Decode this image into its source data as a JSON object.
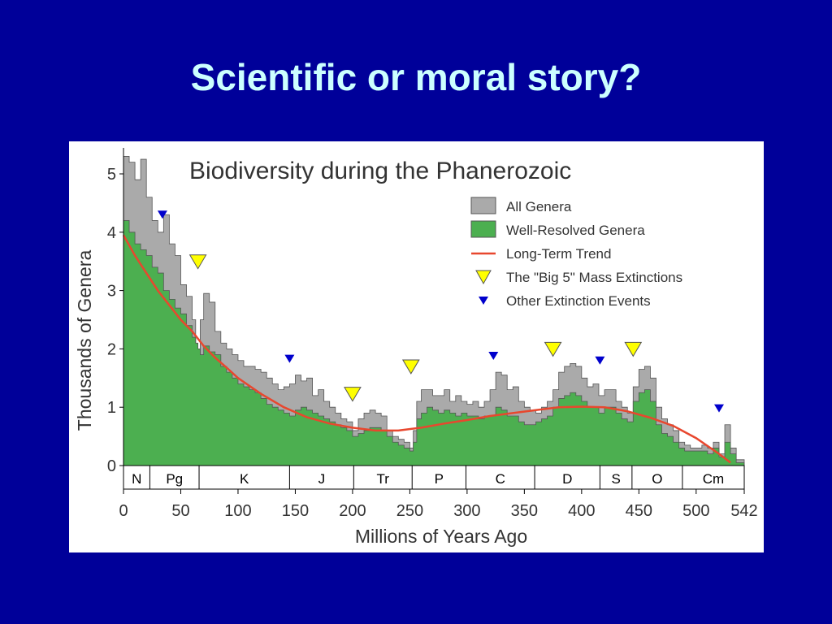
{
  "slide": {
    "title": "Scientific or moral story?"
  },
  "chart_data": {
    "type": "area",
    "title": "Biodiversity during the Phanerozoic",
    "xlabel": "Millions of Years Ago",
    "ylabel": "Thousands of Genera",
    "xlim": [
      0,
      542
    ],
    "ylim": [
      0,
      5.3
    ],
    "x_ticks": [
      0,
      50,
      100,
      150,
      200,
      250,
      300,
      350,
      400,
      450,
      500,
      542
    ],
    "y_ticks": [
      0,
      1,
      2,
      3,
      4,
      5
    ],
    "legend": {
      "position": "top-right",
      "entries": [
        {
          "label": "All Genera",
          "kind": "box",
          "color": "#aaaaaa"
        },
        {
          "label": "Well-Resolved Genera",
          "kind": "box",
          "color": "#4caf50"
        },
        {
          "label": "Long-Term Trend",
          "kind": "line",
          "color": "#e8472e"
        },
        {
          "label": "The \"Big 5\" Mass Extinctions",
          "kind": "big-triangle",
          "color": "#ffff00"
        },
        {
          "label": "Other Extinction Events",
          "kind": "small-triangle",
          "color": "#0000cc"
        }
      ]
    },
    "series": [
      {
        "name": "All Genera",
        "color": "#aaaaaa",
        "x": [
          0,
          5,
          10,
          15,
          20,
          25,
          30,
          35,
          40,
          45,
          50,
          55,
          60,
          63,
          65,
          67,
          70,
          75,
          80,
          85,
          90,
          95,
          100,
          105,
          110,
          115,
          120,
          125,
          130,
          135,
          140,
          145,
          150,
          155,
          160,
          165,
          170,
          175,
          180,
          185,
          190,
          195,
          200,
          205,
          210,
          215,
          220,
          225,
          230,
          235,
          240,
          245,
          250,
          253,
          256,
          260,
          265,
          270,
          275,
          280,
          285,
          290,
          295,
          300,
          305,
          310,
          315,
          320,
          325,
          330,
          335,
          340,
          345,
          350,
          355,
          360,
          365,
          370,
          375,
          380,
          385,
          390,
          395,
          400,
          405,
          410,
          415,
          420,
          425,
          430,
          435,
          440,
          445,
          450,
          455,
          460,
          465,
          470,
          475,
          480,
          485,
          490,
          495,
          500,
          505,
          510,
          515,
          520,
          525,
          530,
          535,
          542
        ],
        "values": [
          5.3,
          5.2,
          4.9,
          5.25,
          4.6,
          4.2,
          4.0,
          4.3,
          3.8,
          3.6,
          3.1,
          2.9,
          2.5,
          1.7,
          1.5,
          2.5,
          2.95,
          2.8,
          2.3,
          2.1,
          2.0,
          1.9,
          1.8,
          1.7,
          1.7,
          1.65,
          1.6,
          1.5,
          1.4,
          1.3,
          1.35,
          1.4,
          1.55,
          1.45,
          1.5,
          1.2,
          1.3,
          1.1,
          1.0,
          0.9,
          0.8,
          0.75,
          0.6,
          0.8,
          0.9,
          0.95,
          0.9,
          0.85,
          0.6,
          0.5,
          0.45,
          0.4,
          0.3,
          0.6,
          1.1,
          1.3,
          1.3,
          1.2,
          1.2,
          1.3,
          1.1,
          1.2,
          1.1,
          1.05,
          1.1,
          1.0,
          1.1,
          1.3,
          1.6,
          1.55,
          1.3,
          1.35,
          1.1,
          1.0,
          0.95,
          0.9,
          1.0,
          1.1,
          1.3,
          1.6,
          1.7,
          1.75,
          1.7,
          1.5,
          1.35,
          1.4,
          1.2,
          1.3,
          1.3,
          1.1,
          1.0,
          0.9,
          1.35,
          1.65,
          1.7,
          1.5,
          1.0,
          0.8,
          0.7,
          0.6,
          0.4,
          0.35,
          0.3,
          0.3,
          0.35,
          0.3,
          0.4,
          0.2,
          0.7,
          0.3,
          0.1,
          0.03
        ]
      },
      {
        "name": "Well-Resolved Genera",
        "color": "#4caf50",
        "x": [
          0,
          5,
          10,
          15,
          20,
          25,
          30,
          35,
          40,
          45,
          50,
          55,
          60,
          63,
          65,
          67,
          70,
          75,
          80,
          85,
          90,
          95,
          100,
          105,
          110,
          115,
          120,
          125,
          130,
          135,
          140,
          145,
          150,
          155,
          160,
          165,
          170,
          175,
          180,
          185,
          190,
          195,
          200,
          205,
          210,
          215,
          220,
          225,
          230,
          235,
          240,
          245,
          250,
          253,
          256,
          260,
          265,
          270,
          275,
          280,
          285,
          290,
          295,
          300,
          305,
          310,
          315,
          320,
          325,
          330,
          335,
          340,
          345,
          350,
          355,
          360,
          365,
          370,
          375,
          380,
          385,
          390,
          395,
          400,
          405,
          410,
          415,
          420,
          425,
          430,
          435,
          440,
          445,
          450,
          455,
          460,
          465,
          470,
          475,
          480,
          485,
          490,
          495,
          500,
          505,
          510,
          515,
          520,
          525,
          530,
          535,
          542
        ],
        "values": [
          4.2,
          4.0,
          3.8,
          3.7,
          3.6,
          3.4,
          3.3,
          3.0,
          2.85,
          2.7,
          2.6,
          2.4,
          2.2,
          2.1,
          2.0,
          1.9,
          2.05,
          1.95,
          1.9,
          1.7,
          1.6,
          1.5,
          1.4,
          1.35,
          1.3,
          1.25,
          1.15,
          1.05,
          1.0,
          0.95,
          0.9,
          0.85,
          0.95,
          1.0,
          0.95,
          0.9,
          0.85,
          0.8,
          0.75,
          0.7,
          0.65,
          0.6,
          0.5,
          0.55,
          0.6,
          0.65,
          0.65,
          0.6,
          0.5,
          0.4,
          0.35,
          0.3,
          0.25,
          0.4,
          0.8,
          0.9,
          1.0,
          0.95,
          0.9,
          0.95,
          0.9,
          0.85,
          0.9,
          0.85,
          0.85,
          0.8,
          0.85,
          0.85,
          1.0,
          0.95,
          0.85,
          0.85,
          0.75,
          0.7,
          0.7,
          0.75,
          0.8,
          0.85,
          1.0,
          1.15,
          1.2,
          1.25,
          1.2,
          1.1,
          1.0,
          1.0,
          0.9,
          1.0,
          1.0,
          0.9,
          0.8,
          0.75,
          1.1,
          1.25,
          1.3,
          1.1,
          0.7,
          0.55,
          0.5,
          0.4,
          0.3,
          0.25,
          0.25,
          0.25,
          0.25,
          0.2,
          0.3,
          0.15,
          0.4,
          0.2,
          0.05,
          0.02
        ]
      },
      {
        "name": "Long-Term Trend",
        "color": "#e8472e",
        "x": [
          0,
          10,
          20,
          30,
          40,
          50,
          60,
          70,
          80,
          90,
          100,
          120,
          140,
          160,
          180,
          200,
          220,
          240,
          260,
          280,
          300,
          320,
          340,
          360,
          380,
          400,
          420,
          440,
          460,
          480,
          500,
          520,
          530
        ],
        "values": [
          3.95,
          3.6,
          3.3,
          3.0,
          2.75,
          2.5,
          2.3,
          2.05,
          1.85,
          1.68,
          1.5,
          1.23,
          1.0,
          0.83,
          0.72,
          0.65,
          0.6,
          0.6,
          0.65,
          0.72,
          0.78,
          0.85,
          0.9,
          0.95,
          1.0,
          1.01,
          1.0,
          0.93,
          0.82,
          0.68,
          0.47,
          0.2,
          0.05
        ]
      }
    ],
    "big5_extinctions": [
      {
        "x": 65,
        "y": 3.5
      },
      {
        "x": 200,
        "y": 1.23
      },
      {
        "x": 251,
        "y": 1.7
      },
      {
        "x": 375,
        "y": 2.0
      },
      {
        "x": 445,
        "y": 2.0
      }
    ],
    "other_extinctions": [
      {
        "x": 34,
        "y": 4.3
      },
      {
        "x": 145,
        "y": 1.83
      },
      {
        "x": 323,
        "y": 1.88
      },
      {
        "x": 416,
        "y": 1.8
      },
      {
        "x": 520,
        "y": 0.98
      }
    ],
    "periods": [
      {
        "label": "N",
        "start": 0,
        "end": 23
      },
      {
        "label": "Pg",
        "start": 23,
        "end": 66
      },
      {
        "label": "K",
        "start": 66,
        "end": 145
      },
      {
        "label": "J",
        "start": 145,
        "end": 201
      },
      {
        "label": "Tr",
        "start": 201,
        "end": 252
      },
      {
        "label": "P",
        "start": 252,
        "end": 299
      },
      {
        "label": "C",
        "start": 299,
        "end": 359
      },
      {
        "label": "D",
        "start": 359,
        "end": 416
      },
      {
        "label": "S",
        "start": 416,
        "end": 444
      },
      {
        "label": "O",
        "start": 444,
        "end": 488
      },
      {
        "label": "Cm",
        "start": 488,
        "end": 542
      }
    ],
    "grid": false
  }
}
